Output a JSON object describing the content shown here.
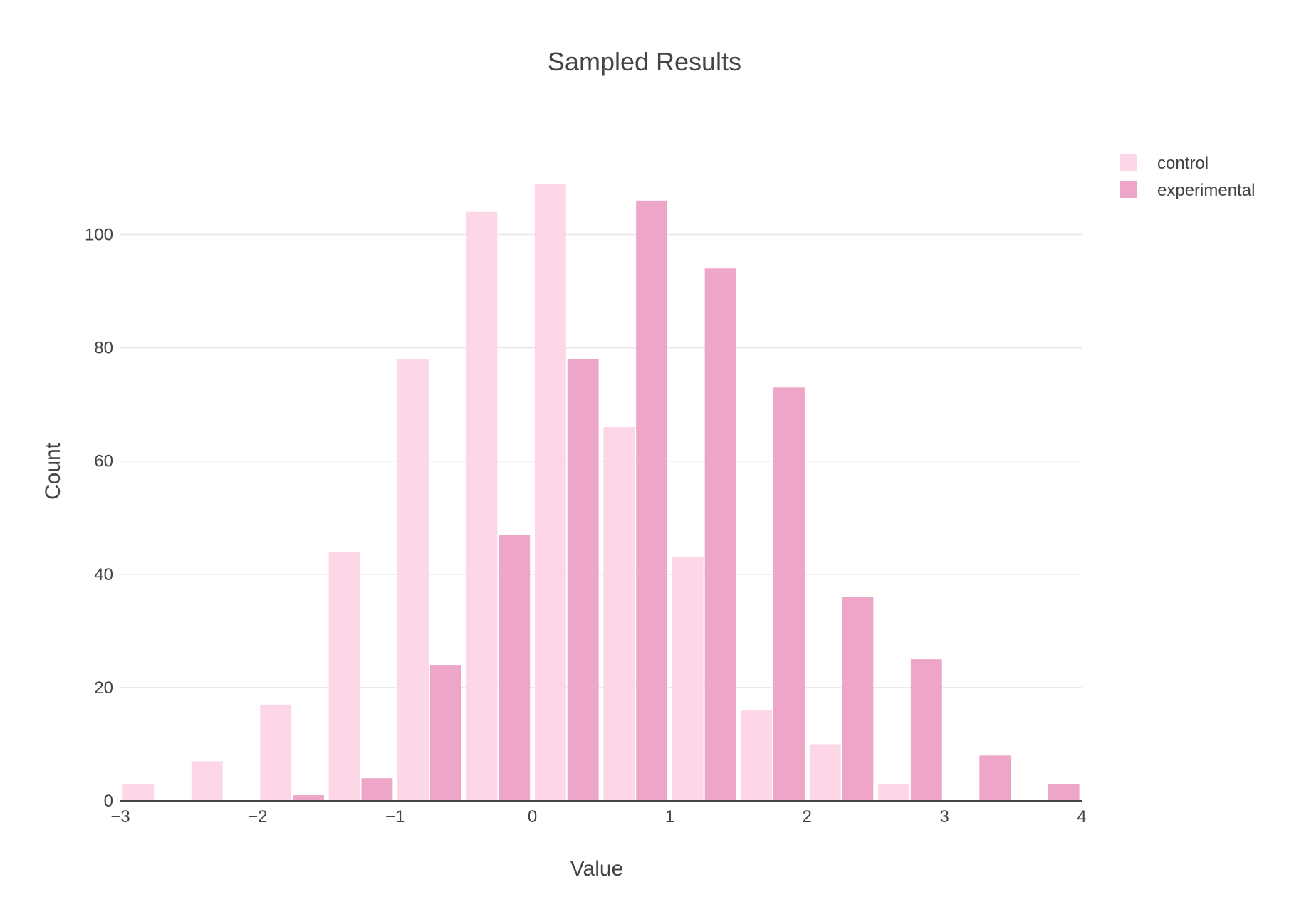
{
  "chart_data": {
    "type": "bar",
    "title": "Sampled Results",
    "xlabel": "Value",
    "ylabel": "Count",
    "xlim": [
      -3,
      4
    ],
    "ylim": [
      0,
      110
    ],
    "x_ticks": [
      -3,
      -2,
      -1,
      0,
      1,
      2,
      3,
      4
    ],
    "x_tick_labels": [
      "−3",
      "−2",
      "−1",
      "0",
      "1",
      "2",
      "3",
      "4"
    ],
    "y_ticks": [
      0,
      20,
      40,
      60,
      80,
      100
    ],
    "y_tick_labels": [
      "0",
      "20",
      "40",
      "60",
      "80",
      "100"
    ],
    "grid": true,
    "legend_position": "top-right",
    "bin_starts": [
      -3,
      -2.5,
      -2,
      -1.5,
      -1,
      -0.5,
      0,
      0.5,
      1,
      1.5,
      2,
      2.5,
      3,
      3.5
    ],
    "bin_width": 0.5,
    "series": [
      {
        "name": "control",
        "color": "#fdd7e8",
        "values": [
          3,
          7,
          17,
          44,
          78,
          104,
          109,
          66,
          43,
          16,
          10,
          3,
          0,
          0
        ]
      },
      {
        "name": "experimental",
        "color": "#eea6c8",
        "values": [
          0,
          0,
          1,
          4,
          24,
          47,
          78,
          106,
          94,
          73,
          36,
          25,
          8,
          3
        ]
      }
    ]
  }
}
